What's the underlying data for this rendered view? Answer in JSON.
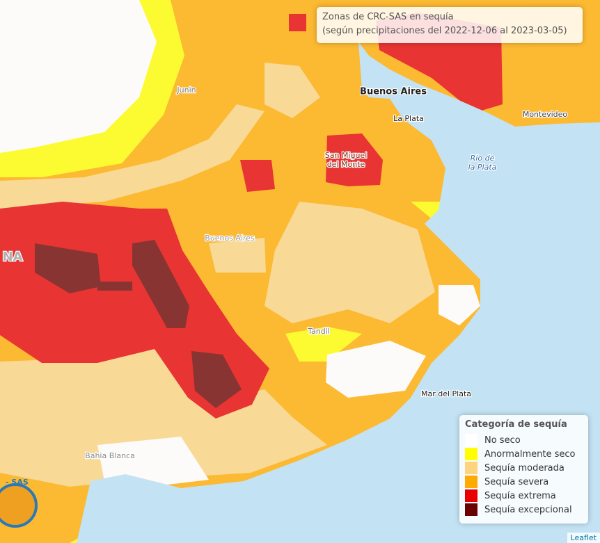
{
  "header": {
    "title": "Zonas de CRC-SAS en sequía",
    "subtitle": "(según precipitaciones del 2022-12-06 al 2023-03-05)"
  },
  "legend": {
    "title": "Categoría de sequía",
    "items": [
      {
        "label": "No seco",
        "color": "#ffffff"
      },
      {
        "label": "Anormalmente seco",
        "color": "#ffff00"
      },
      {
        "label": "Sequía moderada",
        "color": "#fcd37f"
      },
      {
        "label": "Sequía severa",
        "color": "#ffaa00"
      },
      {
        "label": "Sequía extrema",
        "color": "#e60000"
      },
      {
        "label": "Sequía excepcional",
        "color": "#6b0000"
      }
    ]
  },
  "places": [
    {
      "lines": [
        "Junin"
      ]
    },
    {
      "lines": [
        "Buenos Aires"
      ]
    },
    {
      "lines": [
        "La Plata"
      ]
    },
    {
      "lines": [
        "Montevideo"
      ]
    },
    {
      "lines": [
        "San Miguel",
        "del Monte"
      ]
    },
    {
      "lines": [
        "Rio de",
        "la Plata"
      ]
    },
    {
      "lines": [
        "Buenos Aires"
      ]
    },
    {
      "lines": [
        "NA"
      ]
    },
    {
      "lines": [
        "Tandil"
      ]
    },
    {
      "lines": [
        "Mar del Plata"
      ]
    },
    {
      "lines": [
        "Bahia Blanca"
      ]
    }
  ],
  "logo": "- SAS",
  "attribution": "Leaflet"
}
